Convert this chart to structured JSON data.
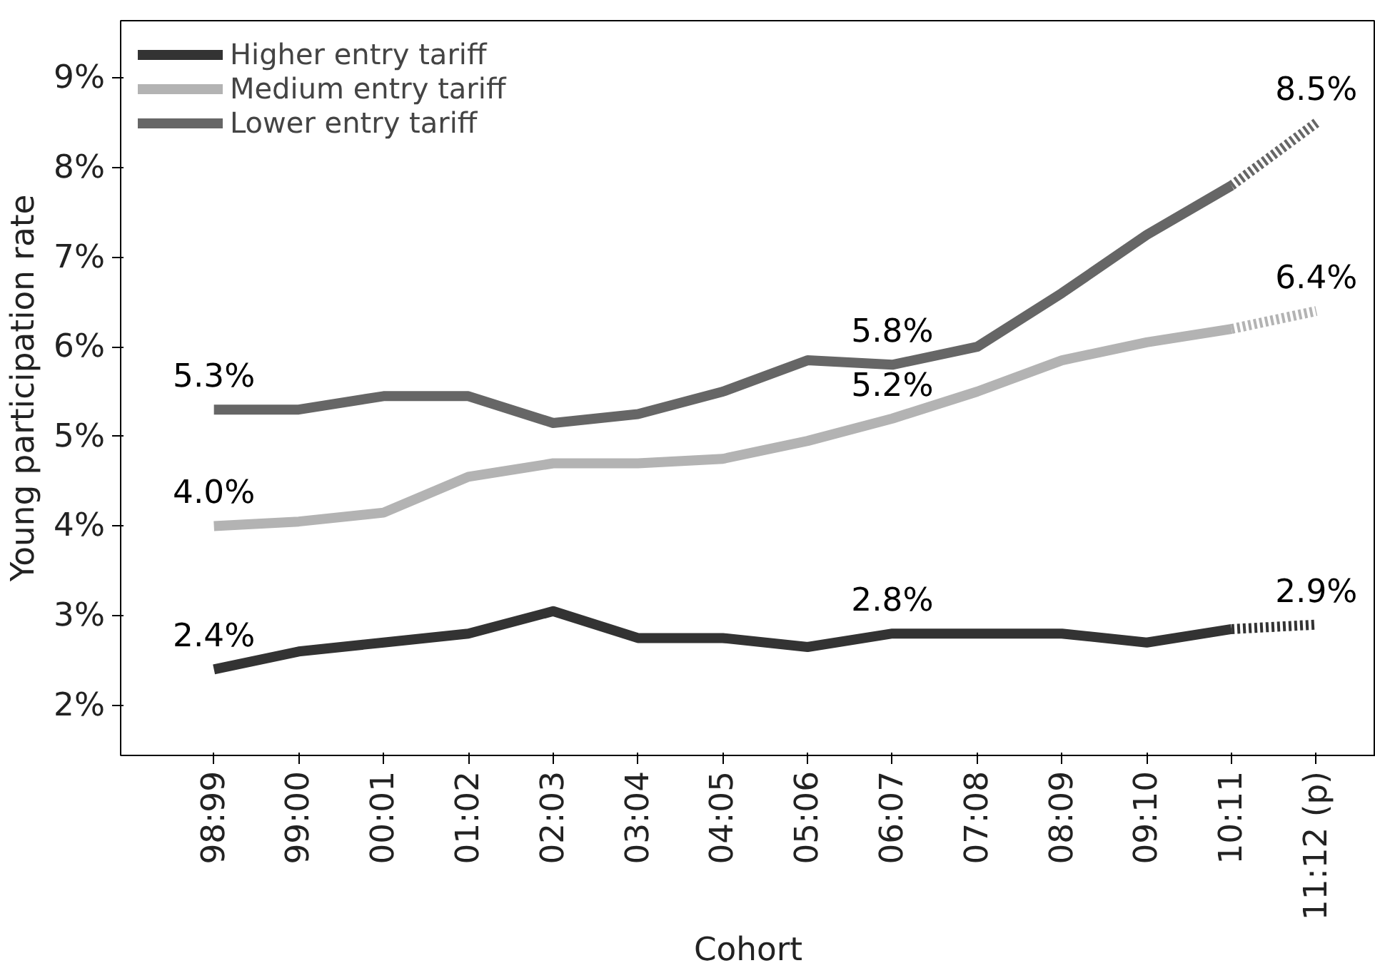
{
  "chart_data": {
    "type": "line",
    "xlabel": "Cohort",
    "ylabel": "Young participation rate",
    "categories": [
      "98:99",
      "99:00",
      "00:01",
      "01:02",
      "02:03",
      "03:04",
      "04:05",
      "05:06",
      "06:07",
      "07:08",
      "08:09",
      "09:10",
      "10:11",
      "11:12 (p)"
    ],
    "series": [
      {
        "name": "Higher entry tariff",
        "color": "#333333",
        "line_style": "solid",
        "values": [
          2.4,
          2.6,
          2.7,
          2.8,
          3.05,
          2.75,
          2.75,
          2.65,
          2.8,
          2.8,
          2.8,
          2.7,
          2.85,
          null
        ],
        "value_labels": [
          "2.4%",
          null,
          null,
          null,
          null,
          null,
          null,
          null,
          "2.8%",
          null,
          null,
          null,
          null,
          null
        ]
      },
      {
        "name": "Medium entry tariff",
        "color": "#b3b3b3",
        "line_style": "solid",
        "values": [
          4.0,
          4.05,
          4.15,
          4.55,
          4.7,
          4.7,
          4.75,
          4.95,
          5.2,
          5.5,
          5.85,
          6.05,
          6.2,
          null
        ],
        "value_labels": [
          "4.0%",
          null,
          null,
          null,
          null,
          null,
          null,
          null,
          "5.2%",
          null,
          null,
          null,
          null,
          null
        ]
      },
      {
        "name": "Lower entry tariff",
        "color": "#666666",
        "line_style": "solid",
        "values": [
          5.3,
          5.3,
          5.45,
          5.45,
          5.15,
          5.25,
          5.5,
          5.85,
          5.8,
          6.0,
          6.6,
          7.25,
          7.8,
          null
        ],
        "value_labels": [
          "5.3%",
          null,
          null,
          null,
          null,
          null,
          null,
          null,
          "5.8%",
          null,
          null,
          null,
          null,
          null
        ]
      },
      {
        "color": "#333333",
        "line_style": "dotted",
        "values": [
          null,
          null,
          null,
          null,
          null,
          null,
          null,
          null,
          null,
          null,
          null,
          null,
          2.85,
          2.9
        ],
        "value_labels": [
          null,
          null,
          null,
          null,
          null,
          null,
          null,
          null,
          null,
          null,
          null,
          null,
          null,
          "2.9%"
        ]
      },
      {
        "color": "#b3b3b3",
        "line_style": "dotted",
        "values": [
          null,
          null,
          null,
          null,
          null,
          null,
          null,
          null,
          null,
          null,
          null,
          null,
          6.2,
          6.4
        ],
        "value_labels": [
          null,
          null,
          null,
          null,
          null,
          null,
          null,
          null,
          null,
          null,
          null,
          null,
          null,
          "6.4%"
        ]
      },
      {
        "color": "#666666",
        "line_style": "dotted",
        "values": [
          null,
          null,
          null,
          null,
          null,
          null,
          null,
          null,
          null,
          null,
          null,
          null,
          7.8,
          8.5
        ],
        "value_labels": [
          null,
          null,
          null,
          null,
          null,
          null,
          null,
          null,
          null,
          null,
          null,
          null,
          null,
          "8.5%"
        ]
      }
    ],
    "ylim": [
      1.44,
      9.64
    ],
    "yticks": [
      {
        "value": 2,
        "label": "2%"
      },
      {
        "value": 3,
        "label": "3%"
      },
      {
        "value": 4,
        "label": "4%"
      },
      {
        "value": 5,
        "label": "5%"
      },
      {
        "value": 6,
        "label": "6%"
      },
      {
        "value": 7,
        "label": "7%"
      },
      {
        "value": 8,
        "label": "8%"
      },
      {
        "value": 9,
        "label": "9%"
      }
    ],
    "grid": false,
    "legend": "top left",
    "marker": "none"
  }
}
